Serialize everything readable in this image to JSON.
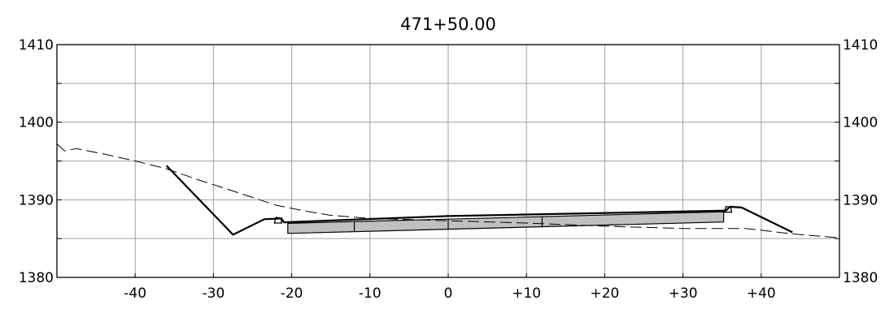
{
  "title": "471+50.00",
  "chart_data": {
    "type": "line",
    "title": "471+50.00",
    "xlim": [
      -50,
      50
    ],
    "ylim": [
      1380,
      1410
    ],
    "x_ticks": [
      -40,
      -30,
      -20,
      -10,
      0,
      10,
      20,
      30,
      40
    ],
    "x_tick_labels": [
      "-40",
      "-30",
      "-20",
      "-10",
      "0",
      "+10",
      "+20",
      "+30",
      "+40"
    ],
    "y_ticks": [
      1380,
      1390,
      1400,
      1410
    ],
    "y_tick_labels": [
      "1380",
      "1390",
      "1400",
      "1410"
    ],
    "minor_y_step": 5,
    "grid": true,
    "series": [
      {
        "style": "dashed",
        "points": [
          [
            -50,
            1397.2
          ],
          [
            -49,
            1396.3
          ],
          [
            -47.5,
            1396.6
          ],
          [
            -44,
            1395.9
          ],
          [
            -40,
            1395.0
          ],
          [
            -36,
            1394.0
          ],
          [
            -32,
            1392.6
          ],
          [
            -28,
            1391.3
          ],
          [
            -25,
            1390.3
          ],
          [
            -22,
            1389.3
          ],
          [
            -18,
            1388.5
          ],
          [
            -15,
            1388.0
          ],
          [
            -10,
            1387.6
          ],
          [
            0,
            1387.3
          ],
          [
            10,
            1387.0
          ],
          [
            20,
            1386.6
          ],
          [
            30,
            1386.3
          ],
          [
            38,
            1386.3
          ],
          [
            44,
            1385.6
          ],
          [
            50,
            1385.1
          ]
        ]
      },
      {
        "style": "solid",
        "points": [
          [
            -36,
            1394.4
          ],
          [
            -27.5,
            1385.5
          ],
          [
            -23.5,
            1387.5
          ],
          [
            -21.3,
            1387.6
          ],
          [
            -21,
            1387.1
          ],
          [
            0,
            1387.9
          ],
          [
            35.5,
            1388.6
          ],
          [
            36,
            1389.1
          ],
          [
            37.5,
            1389.0
          ],
          [
            44,
            1385.8
          ]
        ]
      }
    ]
  }
}
